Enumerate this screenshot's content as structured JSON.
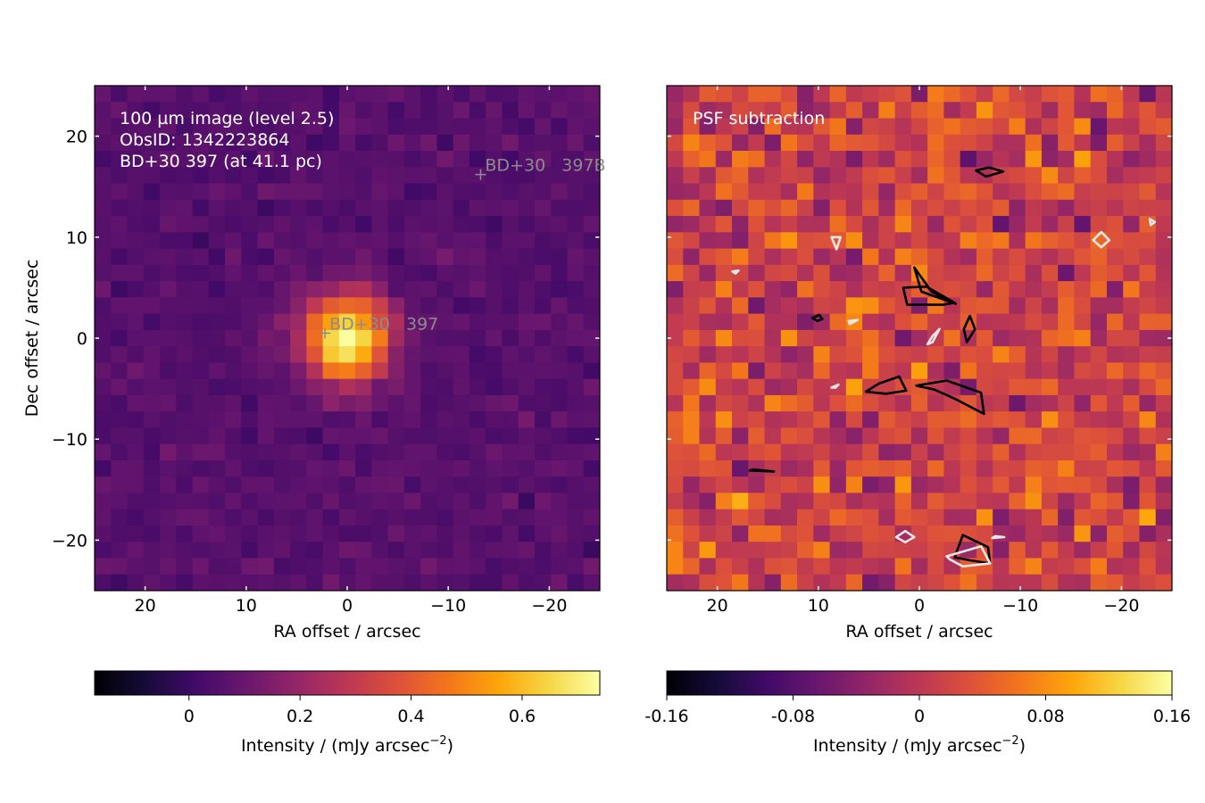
{
  "chart_data": [
    {
      "type": "heatmap",
      "panel": "left",
      "annotation_lines": [
        "100 µm image (level 2.5)",
        "ObsID: 1342223864",
        "BD+30 397 (at 41.1 pc)"
      ],
      "xlabel": "RA offset / arcsec",
      "ylabel": "Dec offset / arcsec",
      "xlim": [
        25,
        -25
      ],
      "ylim": [
        -25,
        25
      ],
      "x_ticks": [
        20,
        10,
        0,
        -10,
        -20
      ],
      "x_tick_labels": [
        "20",
        "10",
        "0",
        "−10",
        "−20"
      ],
      "y_ticks": [
        20,
        10,
        0,
        -10,
        -20
      ],
      "y_tick_labels": [
        "20",
        "10",
        "0",
        "−10",
        "−20"
      ],
      "colormap": "inferno",
      "color_range": [
        -0.17,
        0.74
      ],
      "peak": {
        "x": 0,
        "y": 0,
        "value": 0.74
      },
      "sources": [
        {
          "label": "BD+30   397",
          "x": 2.2,
          "y": 0.5
        },
        {
          "label": "BD+30   397B",
          "x": -13.2,
          "y": 16.2
        }
      ],
      "colorbar": {
        "label": "Intensity / (mJy arcsec",
        "label_exponent": "−2",
        "label_close": ")",
        "ticks": [
          0,
          0.2,
          0.4,
          0.6
        ],
        "tick_labels": [
          "0",
          "0.2",
          "0.4",
          "0.6"
        ]
      }
    },
    {
      "type": "heatmap",
      "panel": "right",
      "annotation_lines": [
        "PSF subtraction"
      ],
      "xlabel": "RA offset / arcsec",
      "xlim": [
        25,
        -25
      ],
      "ylim": [
        -25,
        25
      ],
      "x_ticks": [
        20,
        10,
        0,
        -10,
        -20
      ],
      "x_tick_labels": [
        "20",
        "10",
        "0",
        "−10",
        "−20"
      ],
      "colormap": "inferno",
      "color_range": [
        -0.16,
        0.16
      ],
      "contours": {
        "black": [
          [
            [
              -5.6,
              16.6
            ],
            [
              -6.9,
              16.9
            ],
            [
              -8.3,
              16.5
            ],
            [
              -6.6,
              16.0
            ]
          ],
          [
            [
              0.2,
              6.0
            ],
            [
              -0.2,
              4.6
            ],
            [
              -3.6,
              3.4
            ],
            [
              -1.2,
              4.6
            ],
            [
              0.5,
              7.0
            ]
          ],
          [
            [
              1.6,
              5.0
            ],
            [
              1.2,
              3.3
            ],
            [
              -2.3,
              3.3
            ],
            [
              -3.5,
              3.5
            ],
            [
              -0.7,
              5.1
            ]
          ],
          [
            [
              10.1,
              1.7
            ],
            [
              9.6,
              1.9
            ],
            [
              9.9,
              2.3
            ],
            [
              10.6,
              2.0
            ]
          ],
          [
            [
              -4.7,
              -0.4
            ],
            [
              -5.5,
              0.9
            ],
            [
              -5.0,
              2.2
            ],
            [
              -4.4,
              0.9
            ]
          ],
          [
            [
              4.0,
              -4.5
            ],
            [
              2.0,
              -3.8
            ],
            [
              1.3,
              -5.2
            ],
            [
              3.3,
              -5.5
            ],
            [
              5.3,
              -5.3
            ]
          ],
          [
            [
              0.3,
              -4.7
            ],
            [
              -2.7,
              -4.2
            ],
            [
              -6.1,
              -5.4
            ],
            [
              -6.4,
              -7.5
            ],
            [
              -3.5,
              -6.0
            ],
            [
              -1.5,
              -5.1
            ]
          ],
          [
            [
              16.5,
              -13.0
            ],
            [
              14.4,
              -13.2
            ],
            [
              16.8,
              -13.1
            ]
          ],
          [
            [
              -3.5,
              -21.7
            ],
            [
              -4.3,
              -19.5
            ],
            [
              -6.8,
              -20.7
            ],
            [
              -7.0,
              -22.3
            ],
            [
              -5.0,
              -22.0
            ]
          ]
        ],
        "white": [
          [
            [
              8.7,
              10.0
            ],
            [
              8.2,
              8.8
            ],
            [
              7.8,
              10.0
            ]
          ],
          [
            [
              18.5,
              6.6
            ],
            [
              17.9,
              6.7
            ],
            [
              18.2,
              6.4
            ]
          ],
          [
            [
              7.0,
              1.7
            ],
            [
              6.1,
              1.8
            ],
            [
              6.9,
              1.4
            ]
          ],
          [
            [
              -1.3,
              -0.4
            ],
            [
              -2.0,
              0.9
            ],
            [
              -1.3,
              0.2
            ],
            [
              -0.8,
              -0.6
            ]
          ],
          [
            [
              -18.0,
              10.5
            ],
            [
              -17.2,
              9.7
            ],
            [
              -18.0,
              9.0
            ],
            [
              -18.8,
              9.7
            ]
          ],
          [
            [
              -22.8,
              11.8
            ],
            [
              -23.3,
              11.5
            ],
            [
              -22.9,
              11.2
            ]
          ],
          [
            [
              8.3,
              -4.9
            ],
            [
              8.0,
              -4.6
            ],
            [
              8.7,
              -4.9
            ]
          ],
          [
            [
              2.3,
              -19.7
            ],
            [
              1.4,
              -19.1
            ],
            [
              0.5,
              -19.7
            ],
            [
              1.4,
              -20.2
            ]
          ],
          [
            [
              -2.7,
              -21.6
            ],
            [
              -6.1,
              -20.6
            ],
            [
              -7.0,
              -22.3
            ],
            [
              -4.3,
              -22.6
            ],
            [
              -3.0,
              -21.9
            ]
          ],
          [
            [
              -7.5,
              -19.6
            ],
            [
              -8.4,
              -19.7
            ],
            [
              -7.2,
              -19.8
            ]
          ]
        ]
      },
      "colorbar": {
        "label": "Intensity / (mJy arcsec",
        "label_exponent": "−2",
        "label_close": ")",
        "ticks": [
          -0.16,
          -0.08,
          0,
          0.08,
          0.16
        ],
        "tick_labels": [
          "-0.16",
          "-0.08",
          "0",
          "0.08",
          "0.16"
        ]
      }
    }
  ]
}
